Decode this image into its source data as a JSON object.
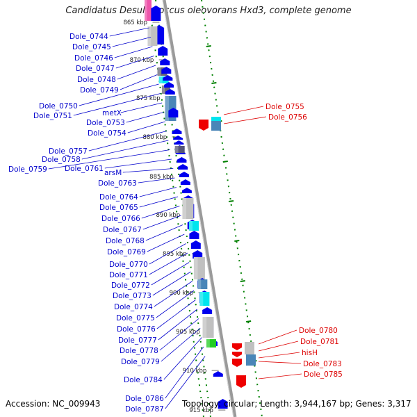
{
  "title": "Candidatus Desulfococcus oleovorans Hxd3, complete genome",
  "footer": {
    "accession": "Accession: NC_009943",
    "topology": "Topology: circular; Length: 3,944,167 bp; Genes: 3,317"
  },
  "colors": {
    "backbone": "#9a9a9a",
    "forward_gene": "#0000ee",
    "reverse_gene": "#ee0000",
    "left_label": "#0000cc",
    "right_label": "#dd0000",
    "tick_dots": "#008000",
    "rna_cyan": "#00e5ee",
    "grey_feature": "#c0c0c0",
    "steel_blue": "#4a86b8",
    "pink": "#ee55aa",
    "green_feature": "#22cc22"
  },
  "scale_labels": [
    "865 kbp",
    "870 kbp",
    "875 kbp",
    "880 kbp",
    "885 kbp",
    "890 kbp",
    "895 kbp",
    "900 kbp",
    "905 kbp",
    "910 kbp",
    "915 kbp"
  ],
  "left_genes": [
    "Dole_0744",
    "Dole_0745",
    "Dole_0746",
    "Dole_0747",
    "Dole_0748",
    "Dole_0749",
    "Dole_0750",
    "Dole_0751",
    "metX",
    "Dole_0753",
    "Dole_0754",
    "Dole_0757",
    "Dole_0758",
    "Dole_0759",
    "Dole_0761",
    "arsM",
    "Dole_0763",
    "Dole_0764",
    "Dole_0765",
    "Dole_0766",
    "Dole_0767",
    "Dole_0768",
    "Dole_0769",
    "Dole_0770",
    "Dole_0771",
    "Dole_0772",
    "Dole_0773",
    "Dole_0774",
    "Dole_0775",
    "Dole_0776",
    "Dole_0777",
    "Dole_0778",
    "Dole_0779",
    "Dole_0784",
    "Dole_0786",
    "Dole_0787"
  ],
  "right_genes": [
    "Dole_0755",
    "Dole_0756",
    "Dole_0780",
    "Dole_0781",
    "hisH",
    "Dole_0783",
    "Dole_0785"
  ]
}
